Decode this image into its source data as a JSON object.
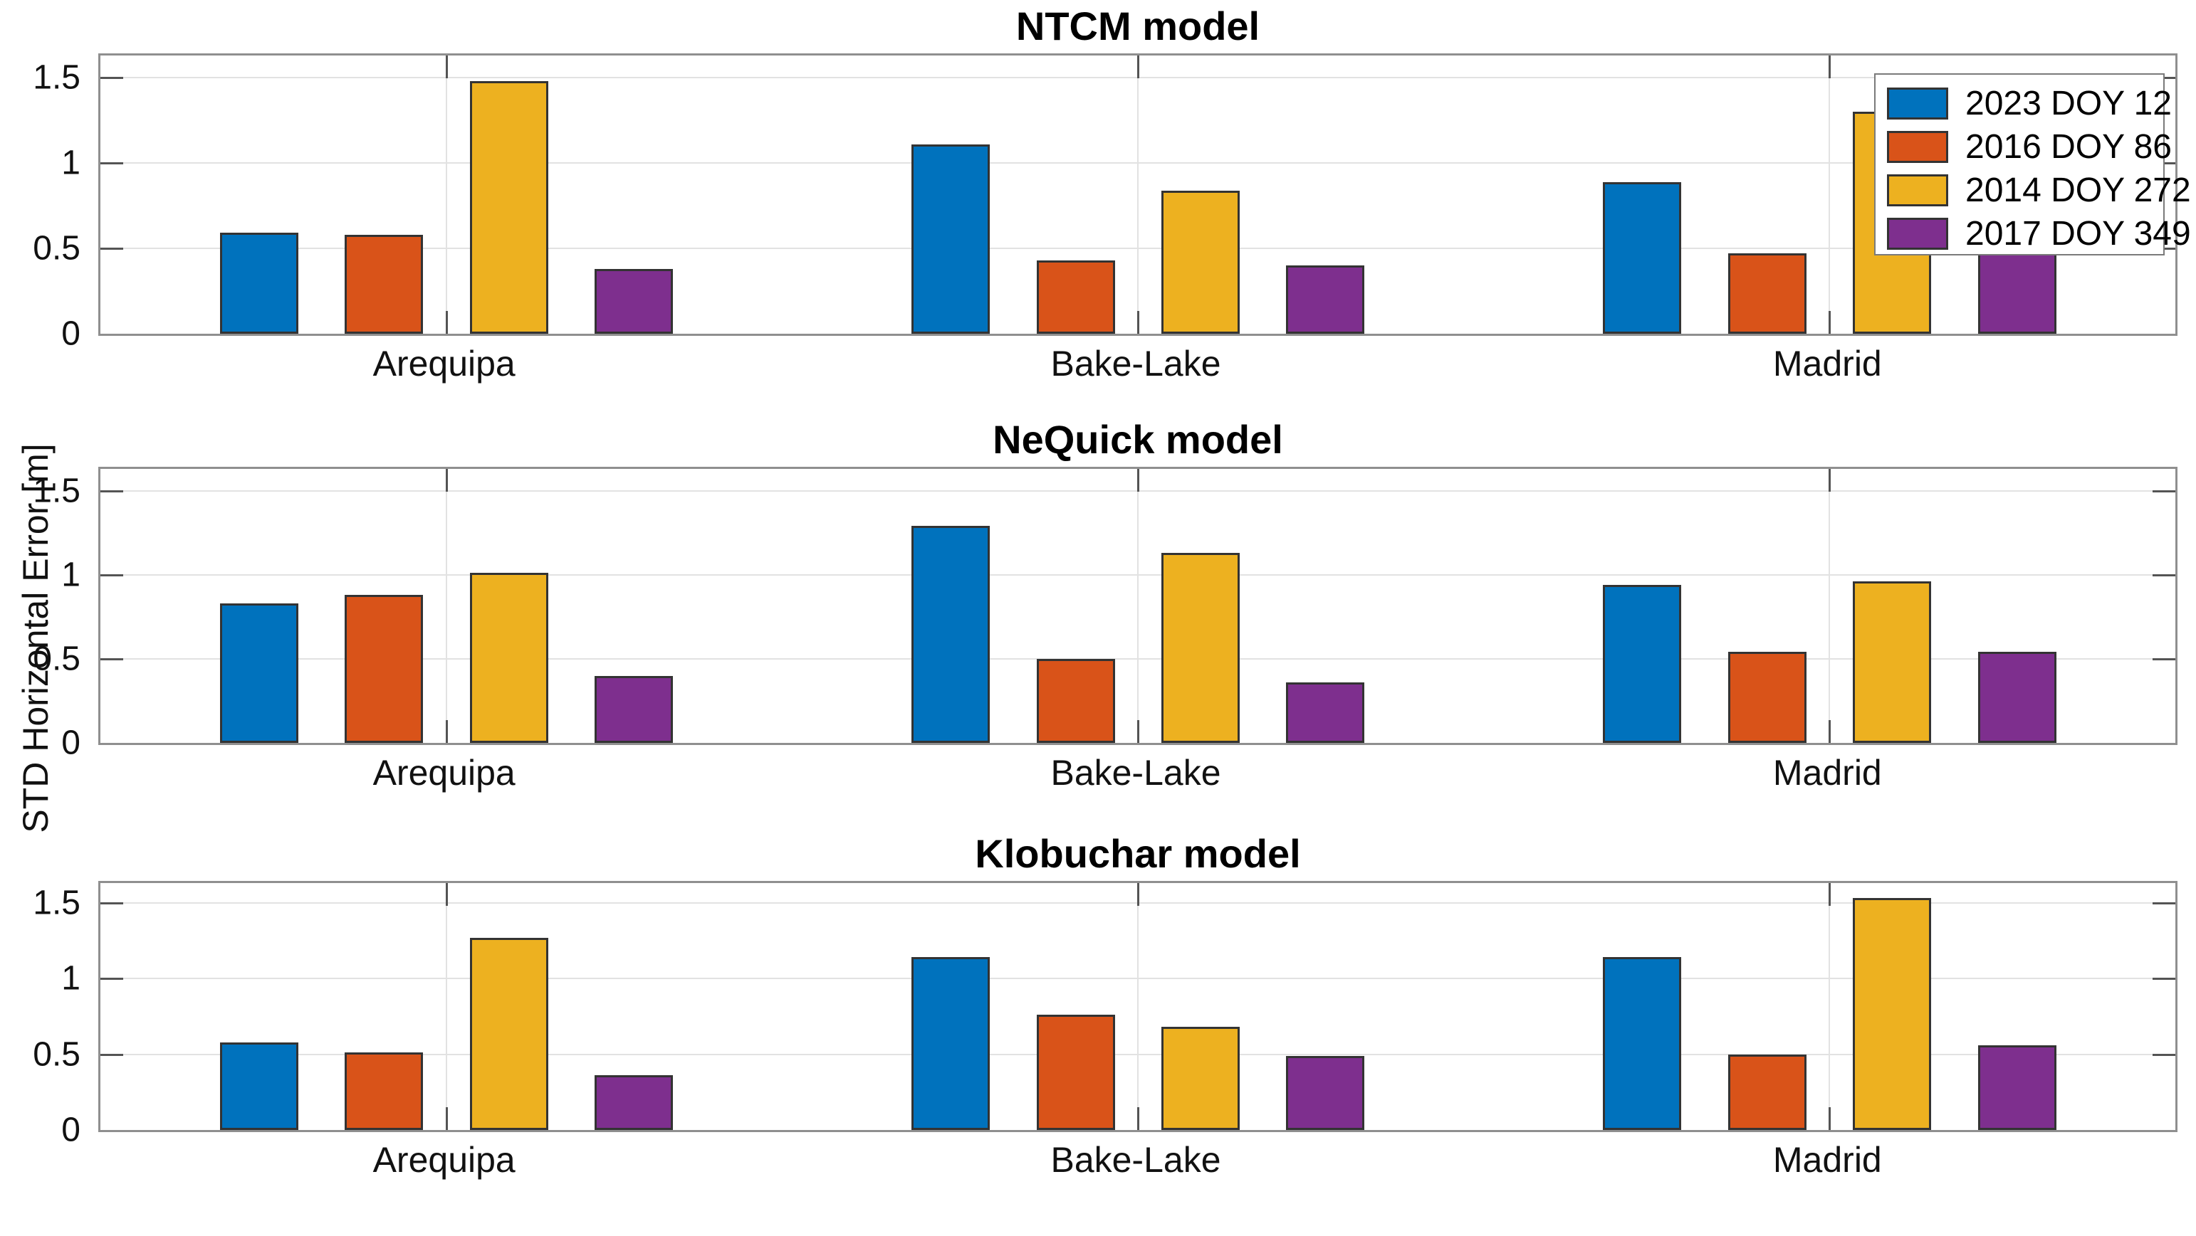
{
  "ylabel": "STD Horizontal Error [m]",
  "categories": [
    "Arequipa",
    "Bake-Lake",
    "Madrid"
  ],
  "ytick_labels": [
    "0",
    "0.5",
    "1",
    "1.5"
  ],
  "yticks": [
    0,
    0.5,
    1,
    1.5
  ],
  "ylim": [
    0,
    1.63
  ],
  "colors": {
    "series_blue": "#0072BD",
    "series_orange": "#D95319",
    "series_yellow": "#EDB120",
    "series_purple": "#7E2F8E",
    "axis_frame": "#8f8f8f",
    "gridline": "#e2e2e2",
    "bar_edge": "#333333",
    "text": "#000000",
    "background": "#ffffff"
  },
  "legend": {
    "position": "top-right",
    "items": [
      {
        "label": "2023 DOY 12",
        "color": "#0072BD"
      },
      {
        "label": "2016 DOY 86",
        "color": "#D95319"
      },
      {
        "label": "2014 DOY 272",
        "color": "#EDB120"
      },
      {
        "label": "2017 DOY 349",
        "color": "#7E2F8E"
      }
    ]
  },
  "chart_data": [
    {
      "type": "bar",
      "title": "NTCM model",
      "categories": [
        "Arequipa",
        "Bake-Lake",
        "Madrid"
      ],
      "ylabel": "STD Horizontal Error [m]",
      "ylim": [
        0,
        1.63
      ],
      "yticks": [
        0,
        0.5,
        1,
        1.5
      ],
      "grid": true,
      "legend_position": "northeast",
      "series": [
        {
          "name": "2023 DOY 12",
          "color": "#0072BD",
          "values": [
            0.59,
            1.11,
            0.89
          ]
        },
        {
          "name": "2016 DOY 86",
          "color": "#D95319",
          "values": [
            0.58,
            0.43,
            0.47
          ]
        },
        {
          "name": "2014 DOY 272",
          "color": "#EDB120",
          "values": [
            1.48,
            0.84,
            1.3
          ]
        },
        {
          "name": "2017 DOY 349",
          "color": "#7E2F8E",
          "values": [
            0.38,
            0.4,
            0.49
          ]
        }
      ]
    },
    {
      "type": "bar",
      "title": "NeQuick model",
      "categories": [
        "Arequipa",
        "Bake-Lake",
        "Madrid"
      ],
      "ylabel": "STD Horizontal Error [m]",
      "ylim": [
        0,
        1.63
      ],
      "yticks": [
        0,
        0.5,
        1,
        1.5
      ],
      "grid": true,
      "series": [
        {
          "name": "2023 DOY 12",
          "color": "#0072BD",
          "values": [
            0.83,
            1.29,
            0.94
          ]
        },
        {
          "name": "2016 DOY 86",
          "color": "#D95319",
          "values": [
            0.88,
            0.5,
            0.54
          ]
        },
        {
          "name": "2014 DOY 272",
          "color": "#EDB120",
          "values": [
            1.01,
            1.13,
            0.96
          ]
        },
        {
          "name": "2017 DOY 349",
          "color": "#7E2F8E",
          "values": [
            0.4,
            0.36,
            0.54
          ]
        }
      ]
    },
    {
      "type": "bar",
      "title": "Klobuchar model",
      "categories": [
        "Arequipa",
        "Bake-Lake",
        "Madrid"
      ],
      "ylabel": "STD Horizontal Error [m]",
      "ylim": [
        0,
        1.63
      ],
      "yticks": [
        0,
        0.5,
        1,
        1.5
      ],
      "grid": true,
      "series": [
        {
          "name": "2023 DOY 12",
          "color": "#0072BD",
          "values": [
            0.58,
            1.14,
            1.14
          ]
        },
        {
          "name": "2016 DOY 86",
          "color": "#D95319",
          "values": [
            0.51,
            0.76,
            0.5
          ]
        },
        {
          "name": "2014 DOY 272",
          "color": "#EDB120",
          "values": [
            1.27,
            0.68,
            1.53
          ]
        },
        {
          "name": "2017 DOY 349",
          "color": "#7E2F8E",
          "values": [
            0.36,
            0.49,
            0.56
          ]
        }
      ]
    }
  ]
}
